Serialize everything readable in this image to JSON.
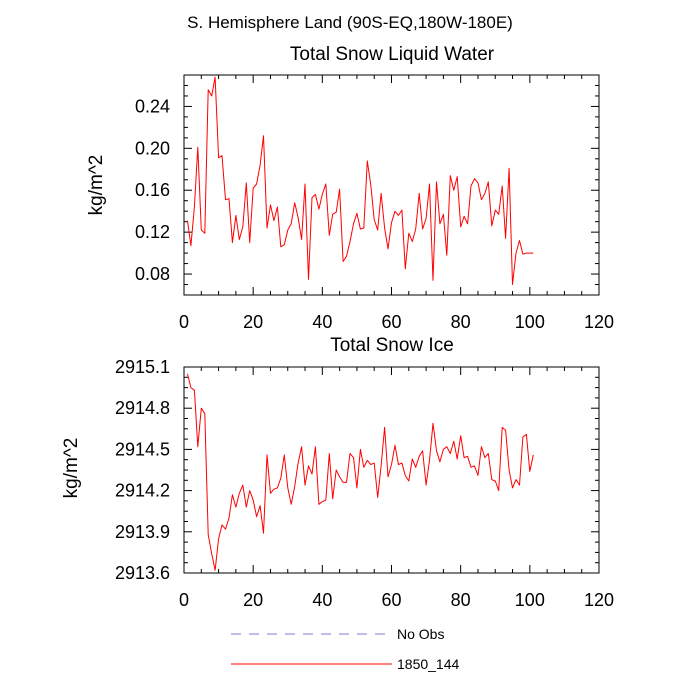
{
  "page": {
    "supertitle": "S. Hemisphere Land (90S-EQ,180W-180E)"
  },
  "legend": [
    {
      "label": "No Obs",
      "color": "#7b7bd6",
      "dash": true
    },
    {
      "label": "1850_144",
      "color": "#ff0000",
      "dash": false
    }
  ],
  "chart_data": [
    {
      "type": "line",
      "title": "Total Snow Liquid Water",
      "xlabel": "",
      "ylabel": "kg/m^2",
      "xlim": [
        0,
        120
      ],
      "ylim": [
        0.06,
        0.27
      ],
      "xticks": [
        0,
        20,
        40,
        60,
        80,
        100,
        120
      ],
      "xtick_labels": [
        "0",
        "20",
        "40",
        "60",
        "80",
        "100",
        "120"
      ],
      "yticks": [
        0.08,
        0.12,
        0.16,
        0.2,
        0.24
      ],
      "ytick_labels": [
        "0.08",
        "0.12",
        "0.16",
        "0.20",
        "0.24"
      ],
      "series": [
        {
          "name": "1850_144",
          "color": "#ff0000",
          "x": [
            1,
            2,
            3,
            4,
            5,
            6,
            7,
            8,
            9,
            10,
            11,
            12,
            13,
            14,
            15,
            16,
            17,
            18,
            19,
            20,
            21,
            22,
            23,
            24,
            25,
            26,
            27,
            28,
            29,
            30,
            31,
            32,
            33,
            34,
            35,
            36,
            37,
            38,
            39,
            40,
            41,
            42,
            43,
            44,
            45,
            46,
            47,
            48,
            49,
            50,
            51,
            52,
            53,
            54,
            55,
            56,
            57,
            58,
            59,
            60,
            61,
            62,
            63,
            64,
            65,
            66,
            67,
            68,
            69,
            70,
            71,
            72,
            73,
            74,
            75,
            76,
            77,
            78,
            79,
            80,
            81,
            82,
            83,
            84,
            85,
            86,
            87,
            88,
            89,
            90,
            91,
            92,
            93,
            94,
            95,
            96,
            97,
            98,
            99,
            100,
            101
          ],
          "values": [
            0.131,
            0.107,
            0.144,
            0.201,
            0.122,
            0.119,
            0.256,
            0.25,
            0.268,
            0.191,
            0.193,
            0.151,
            0.152,
            0.11,
            0.136,
            0.113,
            0.125,
            0.167,
            0.11,
            0.162,
            0.166,
            0.184,
            0.212,
            0.124,
            0.146,
            0.131,
            0.144,
            0.106,
            0.108,
            0.122,
            0.128,
            0.148,
            0.134,
            0.113,
            0.166,
            0.075,
            0.153,
            0.156,
            0.142,
            0.156,
            0.166,
            0.117,
            0.137,
            0.139,
            0.161,
            0.092,
            0.097,
            0.111,
            0.128,
            0.138,
            0.123,
            0.124,
            0.188,
            0.165,
            0.132,
            0.122,
            0.157,
            0.124,
            0.104,
            0.129,
            0.14,
            0.136,
            0.141,
            0.085,
            0.119,
            0.111,
            0.123,
            0.157,
            0.123,
            0.133,
            0.166,
            0.074,
            0.168,
            0.128,
            0.137,
            0.098,
            0.174,
            0.16,
            0.173,
            0.125,
            0.135,
            0.128,
            0.164,
            0.171,
            0.167,
            0.151,
            0.157,
            0.168,
            0.126,
            0.141,
            0.137,
            0.164,
            0.114,
            0.181,
            0.07,
            0.1,
            0.112,
            0.099,
            0.1,
            0.1,
            0.1
          ]
        }
      ]
    },
    {
      "type": "line",
      "title": "Total Snow Ice",
      "xlabel": "",
      "ylabel": "kg/m^2",
      "xlim": [
        0,
        120
      ],
      "ylim": [
        2913.6,
        2915.1
      ],
      "xticks": [
        0,
        20,
        40,
        60,
        80,
        100,
        120
      ],
      "xtick_labels": [
        "0",
        "20",
        "40",
        "60",
        "80",
        "100",
        "120"
      ],
      "yticks": [
        2913.6,
        2913.9,
        2914.2,
        2914.5,
        2914.8,
        2915.1
      ],
      "ytick_labels": [
        "2913.6",
        "2913.9",
        "2914.2",
        "2914.5",
        "2914.8",
        "2915.1"
      ],
      "series": [
        {
          "name": "1850_144",
          "color": "#ff0000",
          "x": [
            1,
            2,
            3,
            4,
            5,
            6,
            7,
            8,
            9,
            10,
            11,
            12,
            13,
            14,
            15,
            16,
            17,
            18,
            19,
            20,
            21,
            22,
            23,
            24,
            25,
            26,
            27,
            28,
            29,
            30,
            31,
            32,
            33,
            34,
            35,
            36,
            37,
            38,
            39,
            40,
            41,
            42,
            43,
            44,
            45,
            46,
            47,
            48,
            49,
            50,
            51,
            52,
            53,
            54,
            55,
            56,
            57,
            58,
            59,
            60,
            61,
            62,
            63,
            64,
            65,
            66,
            67,
            68,
            69,
            70,
            71,
            72,
            73,
            74,
            75,
            76,
            77,
            78,
            79,
            80,
            81,
            82,
            83,
            84,
            85,
            86,
            87,
            88,
            89,
            90,
            91,
            92,
            93,
            94,
            95,
            96,
            97,
            98,
            99,
            100,
            101
          ],
          "values": [
            2915.05,
            2914.95,
            2914.93,
            2914.52,
            2914.8,
            2914.76,
            2913.88,
            2913.74,
            2913.62,
            2913.85,
            2913.95,
            2913.92,
            2914.0,
            2914.17,
            2914.08,
            2914.18,
            2914.24,
            2914.08,
            2914.2,
            2914.13,
            2914.01,
            2914.09,
            2913.89,
            2914.46,
            2914.18,
            2914.21,
            2914.22,
            2914.29,
            2914.46,
            2914.22,
            2914.1,
            2914.23,
            2914.4,
            2914.52,
            2914.24,
            2914.38,
            2914.32,
            2914.52,
            2914.1,
            2914.12,
            2914.13,
            2914.47,
            2914.14,
            2914.35,
            2914.3,
            2914.26,
            2914.26,
            2914.47,
            2914.44,
            2914.22,
            2914.5,
            2914.37,
            2914.42,
            2914.39,
            2914.4,
            2914.15,
            2914.38,
            2914.66,
            2914.3,
            2914.39,
            2914.53,
            2914.39,
            2914.4,
            2914.31,
            2914.27,
            2914.43,
            2914.37,
            2914.45,
            2914.49,
            2914.24,
            2914.42,
            2914.69,
            2914.49,
            2914.41,
            2914.5,
            2914.52,
            2914.47,
            2914.56,
            2914.43,
            2914.6,
            2914.44,
            2914.45,
            2914.37,
            2914.38,
            2914.31,
            2914.52,
            2914.44,
            2914.47,
            2914.28,
            2914.27,
            2914.2,
            2914.66,
            2914.64,
            2914.35,
            2914.22,
            2914.28,
            2914.24,
            2914.59,
            2914.61,
            2914.34,
            2914.46
          ]
        }
      ]
    }
  ]
}
